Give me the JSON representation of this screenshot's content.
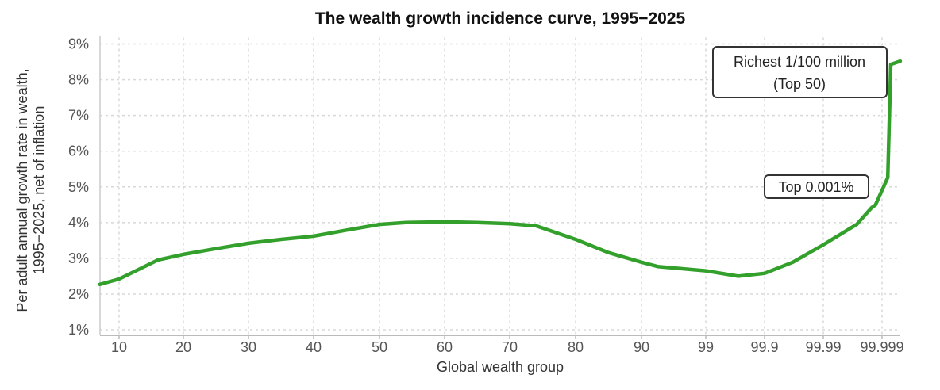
{
  "chart_data": {
    "type": "line",
    "title": "The wealth growth incidence curve, 1995−2025",
    "xlabel": "Global wealth group",
    "ylabel": [
      "Per adult annual growth rate in wealth,",
      "1995−2025, net of inflation"
    ],
    "x_ticks": [
      10,
      20,
      30,
      40,
      50,
      60,
      70,
      80,
      90,
      99,
      99.9,
      99.99,
      99.999
    ],
    "x_tick_labels": [
      "10",
      "20",
      "30",
      "40",
      "50",
      "60",
      "70",
      "80",
      "90",
      "99",
      "99.9",
      "99.99",
      "99.999"
    ],
    "x_scale": "linear to 90, then log of top share",
    "y_ticks": [
      1,
      2,
      3,
      4,
      5,
      6,
      7,
      8,
      9
    ],
    "y_tick_labels": [
      "1%",
      "2%",
      "3%",
      "4%",
      "5%",
      "6%",
      "7%",
      "8%",
      "9%"
    ],
    "ylim": [
      1,
      9
    ],
    "grid": true,
    "color": "#33a02c",
    "x": [
      7,
      10,
      16,
      20,
      25,
      30,
      35,
      40,
      45,
      50,
      54,
      60,
      65,
      70,
      74,
      80,
      85,
      90,
      94.4,
      99,
      99.72,
      99.9,
      99.967,
      99.99,
      99.9973,
      99.9985,
      99.9987,
      99.9992,
      99.99929,
      99.99951
    ],
    "y": [
      2.27,
      2.42,
      2.95,
      3.11,
      3.27,
      3.42,
      3.53,
      3.62,
      3.79,
      3.95,
      4.0,
      4.02,
      4.0,
      3.97,
      3.91,
      3.53,
      3.16,
      2.89,
      2.77,
      2.65,
      2.5,
      2.58,
      2.89,
      3.38,
      3.95,
      4.42,
      4.49,
      5.26,
      8.43,
      8.52
    ],
    "annotations": [
      {
        "lines": [
          "Richest 1/100 million",
          "(Top 50)"
        ]
      },
      {
        "lines": [
          "Top 0.001%"
        ]
      }
    ]
  }
}
